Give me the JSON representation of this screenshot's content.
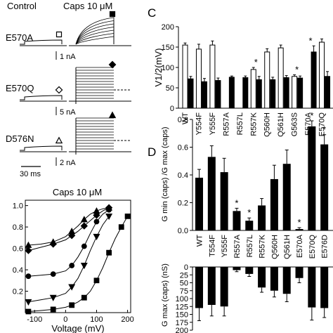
{
  "traces": {
    "control_label": "Control",
    "caps_label": "Caps 10 μM",
    "rows": [
      {
        "mutant": "E570A",
        "scale": "1 nA",
        "symbol": "open-square",
        "caps_symbol": "filled-square"
      },
      {
        "mutant": "E570Q",
        "scale": "5 nA",
        "symbol": "open-diamond",
        "caps_symbol": "filled-diamond"
      },
      {
        "mutant": "D576N",
        "scale": "2 nA",
        "symbol": "open-triangle",
        "caps_symbol": "filled-triangle"
      }
    ],
    "time_scale": "30 ms"
  },
  "panels": {
    "C": "C",
    "D": "D"
  },
  "chart_data": [
    {
      "type": "line",
      "title": "Caps 10 μM",
      "xlabel": "Voltage (mV)",
      "ylabel": "",
      "xlim": [
        -130,
        210
      ],
      "ylim": [
        0,
        1.05
      ],
      "xticks": [
        "-100",
        "0",
        "100",
        "200"
      ],
      "yticks": [
        "0.2",
        "0.4",
        "0.6",
        "0.8",
        "1.0"
      ],
      "series": [
        {
          "marker": "diamond",
          "x": [
            -120,
            -80,
            -40,
            0,
            20,
            40,
            60,
            80,
            100,
            120,
            140
          ],
          "y": [
            0.58,
            0.61,
            0.64,
            0.68,
            0.72,
            0.76,
            0.81,
            0.86,
            0.91,
            0.95,
            0.98
          ]
        },
        {
          "marker": "triangle",
          "x": [
            -120,
            -80,
            -40,
            0,
            20,
            40,
            60,
            80,
            100,
            120,
            140
          ],
          "y": [
            0.63,
            0.64,
            0.66,
            0.71,
            0.76,
            0.81,
            0.87,
            0.92,
            0.95,
            0.97,
            0.98
          ]
        },
        {
          "marker": "circle",
          "x": [
            -120,
            -80,
            -40,
            0,
            20,
            40,
            60,
            80,
            100,
            120,
            140
          ],
          "y": [
            0.34,
            0.35,
            0.36,
            0.39,
            0.44,
            0.52,
            0.62,
            0.74,
            0.85,
            0.92,
            0.96
          ]
        },
        {
          "marker": "inverted-triangle",
          "x": [
            -120,
            -80,
            -40,
            0,
            20,
            40,
            60,
            80,
            100,
            120,
            140
          ],
          "y": [
            0.1,
            0.12,
            0.14,
            0.18,
            0.24,
            0.32,
            0.44,
            0.58,
            0.71,
            0.82,
            0.9
          ]
        },
        {
          "marker": "square",
          "x": [
            -120,
            -80,
            -40,
            0,
            20,
            40,
            60,
            80,
            100,
            120,
            140,
            160,
            180,
            200
          ],
          "y": [
            0.01,
            0.02,
            0.03,
            0.05,
            0.07,
            0.1,
            0.14,
            0.2,
            0.3,
            0.42,
            0.56,
            0.69,
            0.8,
            0.9
          ]
        }
      ]
    },
    {
      "type": "bar",
      "title": "",
      "ylabel": "V1/2(mV)",
      "ylim": [
        0,
        200
      ],
      "yticks": [
        "0",
        "50",
        "100",
        "150",
        "200"
      ],
      "categories": [
        "WT",
        "Y554F",
        "Y555F",
        "R557A",
        "R557L",
        "R557K",
        "Q560H",
        "Q561H",
        "G563S",
        "E570A",
        "E570Q"
      ],
      "series": [
        {
          "name": "",
          "fill": "white",
          "values": [
            155,
            145,
            155,
            null,
            null,
            95,
            138,
            148,
            78,
            null,
            162
          ],
          "errors": [
            5,
            12,
            10,
            0,
            0,
            5,
            8,
            7,
            4,
            0,
            8
          ]
        },
        {
          "name": "",
          "fill": "black",
          "values": [
            72,
            65,
            68,
            76,
            75,
            70,
            70,
            75,
            74,
            138,
            78
          ],
          "errors": [
            6,
            8,
            6,
            3,
            4,
            8,
            6,
            5,
            5,
            15,
            12
          ]
        }
      ],
      "significance": [
        "",
        "",
        "",
        "",
        "",
        "*",
        "",
        "",
        "*",
        "*",
        ""
      ]
    },
    {
      "type": "bar",
      "title": "",
      "ylabel": "G min (caps) /G max (caps)",
      "ylim": [
        0,
        0.8
      ],
      "yticks": [
        "0.0",
        "0.2",
        "0.4",
        "0.6",
        "0.8"
      ],
      "categories": [
        "WT",
        "T554F",
        "Y555F",
        "R557A",
        "R557L",
        "R557K",
        "Q560H",
        "Q561H",
        "E570A",
        "E570Q",
        "E576D"
      ],
      "values": [
        0.38,
        0.53,
        0.42,
        0.14,
        0.07,
        0.18,
        0.37,
        0.48,
        0.01,
        0.75,
        0.62
      ],
      "errors": [
        0.06,
        0.08,
        0.1,
        0.02,
        0.02,
        0.05,
        0.1,
        0.1,
        0.01,
        0.04,
        0.07
      ],
      "significance": [
        "",
        "",
        "",
        "*",
        "*",
        "",
        "",
        "",
        "*",
        "*",
        "*"
      ]
    },
    {
      "type": "bar",
      "title": "",
      "ylabel": "G max (caps) (nS)",
      "ylim": [
        0,
        200
      ],
      "inverted": true,
      "yticks": [
        "0",
        "25",
        "50",
        "75",
        "100",
        "125",
        "150",
        "175",
        "200"
      ],
      "categories": [
        "WT",
        "T554F",
        "Y555F",
        "R557A",
        "R557L",
        "R557K",
        "Q560H",
        "Q561H",
        "E570A",
        "E570Q",
        "E576D"
      ],
      "values": [
        130,
        120,
        125,
        10,
        22,
        65,
        75,
        85,
        35,
        128,
        130
      ],
      "errors": [
        40,
        35,
        30,
        5,
        8,
        15,
        20,
        25,
        15,
        40,
        30
      ]
    }
  ]
}
